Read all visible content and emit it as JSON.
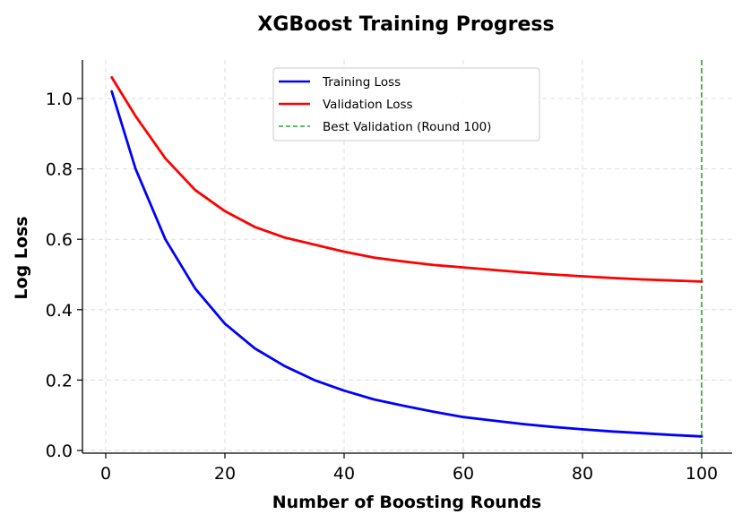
{
  "chart_data": {
    "type": "line",
    "title": "XGBoost Training Progress",
    "xlabel": "Number of Boosting Rounds",
    "ylabel": "Log Loss",
    "xlim": [
      -4,
      105
    ],
    "ylim": [
      -0.01,
      1.11
    ],
    "xticks": [
      0,
      20,
      40,
      60,
      80,
      100
    ],
    "xtick_labels": [
      "0",
      "20",
      "40",
      "60",
      "80",
      "100"
    ],
    "yticks": [
      0.0,
      0.2,
      0.4,
      0.6,
      0.8,
      1.0
    ],
    "ytick_labels": [
      "0.0",
      "0.2",
      "0.4",
      "0.6",
      "0.8",
      "1.0"
    ],
    "grid": true,
    "legend_position": "upper center",
    "x": [
      1,
      5,
      10,
      15,
      20,
      25,
      30,
      35,
      40,
      45,
      50,
      55,
      60,
      65,
      70,
      75,
      80,
      85,
      90,
      95,
      100
    ],
    "series": [
      {
        "name": "Training Loss",
        "color": "#0000ff",
        "style": "solid",
        "values": [
          1.02,
          0.8,
          0.6,
          0.46,
          0.36,
          0.29,
          0.24,
          0.2,
          0.17,
          0.145,
          0.127,
          0.11,
          0.095,
          0.085,
          0.075,
          0.067,
          0.06,
          0.054,
          0.049,
          0.044,
          0.04
        ]
      },
      {
        "name": "Validation Loss",
        "color": "#ff0000",
        "style": "solid",
        "values": [
          1.06,
          0.95,
          0.83,
          0.74,
          0.68,
          0.635,
          0.605,
          0.585,
          0.565,
          0.548,
          0.537,
          0.527,
          0.52,
          0.513,
          0.506,
          0.5,
          0.495,
          0.49,
          0.486,
          0.483,
          0.48
        ]
      }
    ],
    "annotations": [
      {
        "type": "vline",
        "x": 100,
        "label": "Best Validation (Round 100)",
        "color": "#2ca02c",
        "style": "dashed"
      }
    ],
    "legend": [
      "Training Loss",
      "Validation Loss",
      "Best Validation (Round 100)"
    ]
  }
}
